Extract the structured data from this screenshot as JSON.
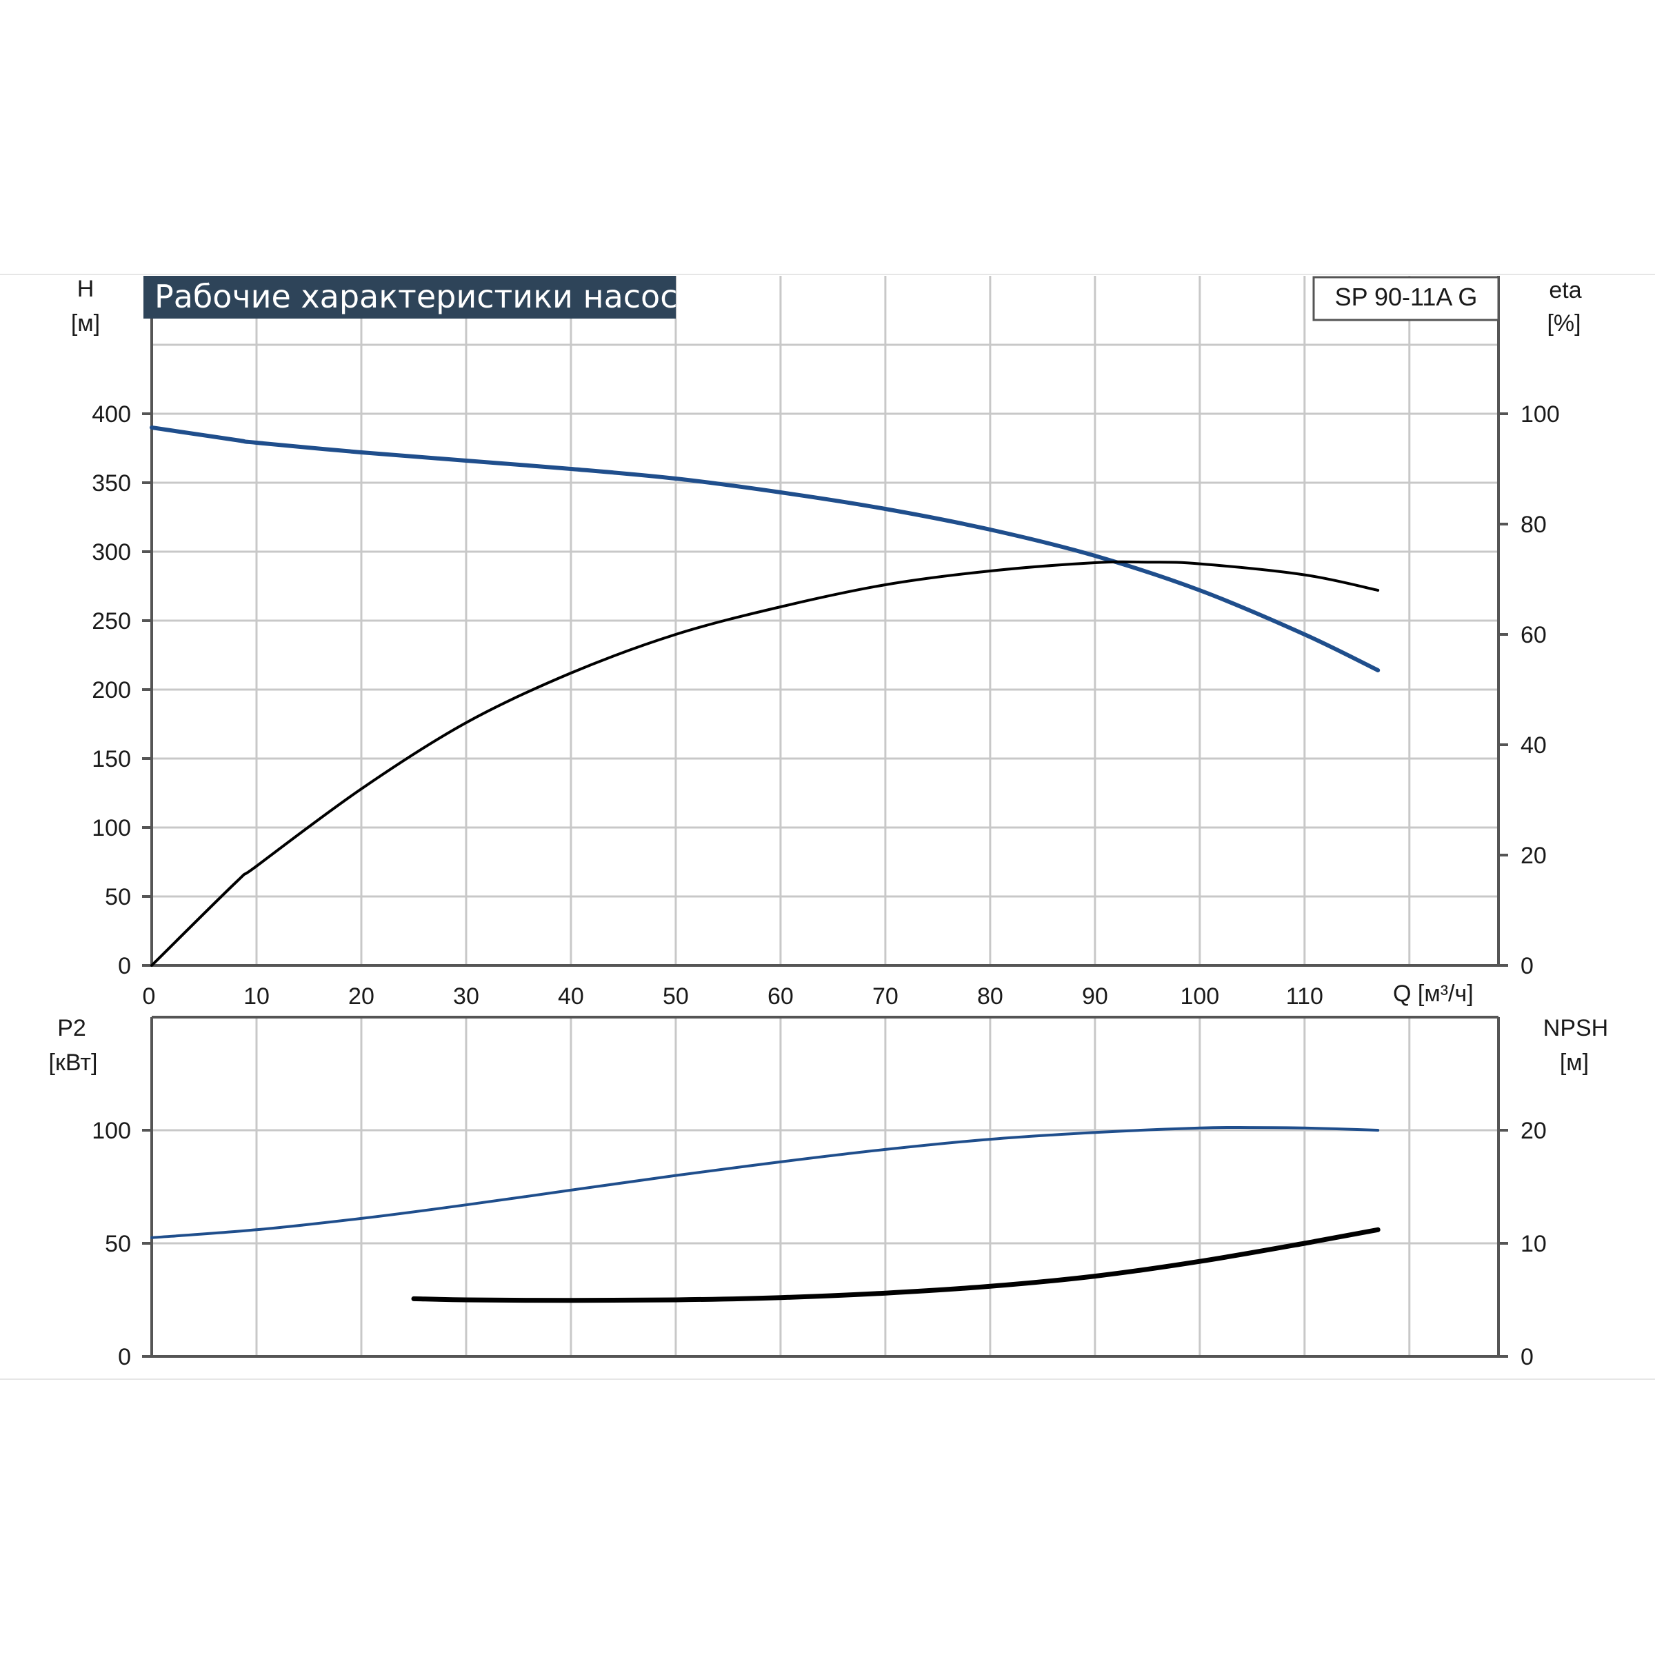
{
  "chart_data": [
    {
      "type": "line",
      "title": "Рабочие характеристики насоса",
      "model_label": "SP 90-11A G",
      "xlabel": "Q [м³/ч]",
      "xlim": [
        0,
        128.5
      ],
      "x_ticks": [
        0,
        10,
        20,
        30,
        40,
        50,
        60,
        70,
        80,
        90,
        100,
        110
      ],
      "left_axis": {
        "label": "H",
        "unit": "[м]",
        "ylim": [
          0,
          400
        ],
        "ticks": [
          0,
          50,
          100,
          150,
          200,
          250,
          300,
          350,
          400
        ]
      },
      "right_axis": {
        "label": "eta",
        "unit": "[%]",
        "ylim": [
          0,
          100
        ],
        "ticks": [
          0,
          20,
          40,
          60,
          80,
          100
        ]
      },
      "grid": true,
      "series": [
        {
          "name": "H",
          "axis": "left",
          "color": "#1f4e8c",
          "x": [
            0,
            8,
            10,
            20,
            30,
            40,
            50,
            60,
            70,
            80,
            90,
            100,
            110,
            117
          ],
          "values": [
            390,
            381,
            379,
            372,
            366,
            360,
            353,
            343,
            331,
            316,
            297,
            272,
            240,
            214
          ]
        },
        {
          "name": "eta",
          "axis": "right",
          "color": "#000000",
          "x": [
            0,
            8,
            10,
            20,
            30,
            40,
            50,
            60,
            70,
            80,
            90,
            95,
            100,
            110,
            117
          ],
          "values": [
            0,
            15,
            18,
            32,
            44,
            53,
            60,
            65,
            69,
            71.5,
            73,
            73.1,
            72.8,
            70.8,
            68
          ]
        }
      ]
    },
    {
      "type": "line",
      "xlim": [
        0,
        128.5
      ],
      "x_ticks": [
        0,
        10,
        20,
        30,
        40,
        50,
        60,
        70,
        80,
        90,
        100,
        110
      ],
      "left_axis": {
        "label": "P2",
        "unit": "[кВт]",
        "ylim": [
          0,
          150
        ],
        "ticks": [
          0,
          50,
          100
        ]
      },
      "right_axis": {
        "label": "NPSH",
        "unit": "[м]",
        "ylim": [
          0,
          30
        ],
        "ticks": [
          0,
          10,
          20
        ]
      },
      "grid": true,
      "series": [
        {
          "name": "P2",
          "axis": "left",
          "color": "#1f4e8c",
          "x": [
            0,
            10,
            20,
            30,
            40,
            50,
            60,
            70,
            80,
            90,
            100,
            105,
            110,
            117
          ],
          "values": [
            52.5,
            56,
            61,
            67,
            73.5,
            80,
            86,
            91.5,
            96,
            99,
            101,
            101.2,
            101,
            100
          ]
        },
        {
          "name": "NPSH",
          "axis": "right",
          "color": "#000000",
          "x": [
            25,
            30,
            40,
            50,
            60,
            70,
            80,
            90,
            100,
            110,
            117
          ],
          "values": [
            5.1,
            5.0,
            4.95,
            5.0,
            5.2,
            5.6,
            6.2,
            7.1,
            8.4,
            10.0,
            11.2
          ]
        }
      ]
    }
  ]
}
